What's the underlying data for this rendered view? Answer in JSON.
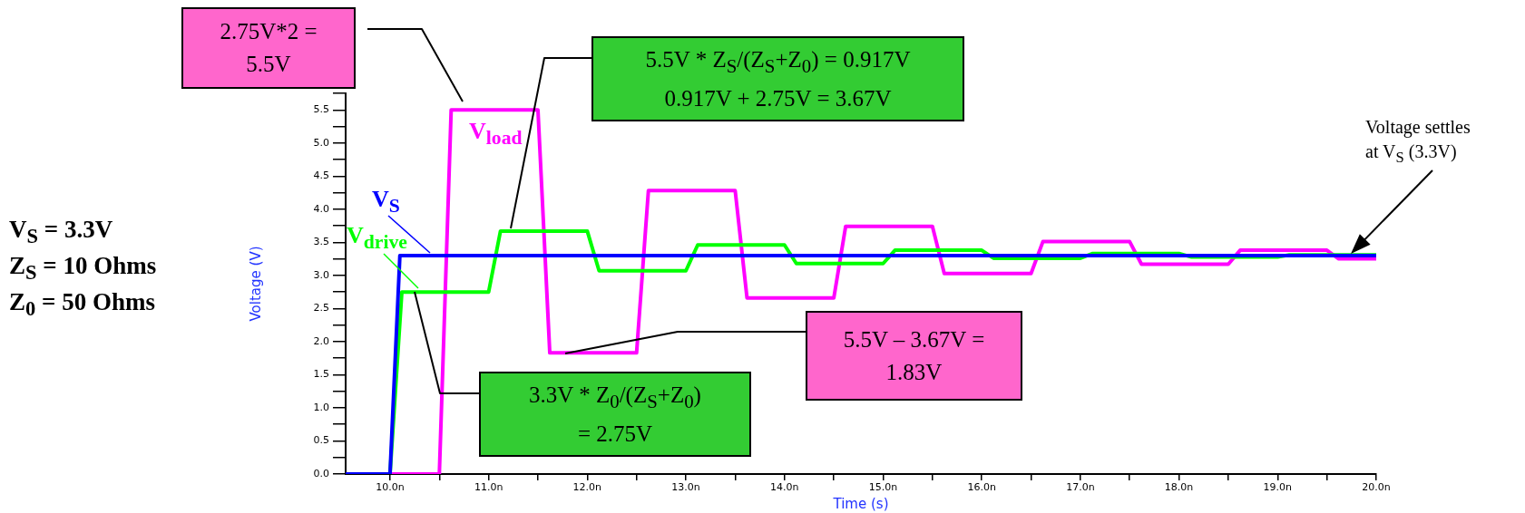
{
  "chart_data": {
    "type": "line",
    "xlabel": "Time (s)",
    "ylabel": "Voltage (V)",
    "xlim": [
      9.55,
      20
    ],
    "xticks": [
      {
        "value": 10,
        "label": "10.0n"
      },
      {
        "value": 10.5,
        "label": null
      },
      {
        "value": 11,
        "label": "11.0n"
      },
      {
        "value": 11.5,
        "label": null
      },
      {
        "value": 12,
        "label": "12.0n"
      },
      {
        "value": 12.5,
        "label": null
      },
      {
        "value": 13,
        "label": "13.0n"
      },
      {
        "value": 13.5,
        "label": null
      },
      {
        "value": 14,
        "label": "14.0n"
      },
      {
        "value": 14.5,
        "label": null
      },
      {
        "value": 15,
        "label": "15.0n"
      },
      {
        "value": 15.5,
        "label": null
      },
      {
        "value": 16,
        "label": "16.0n"
      },
      {
        "value": 16.5,
        "label": null
      },
      {
        "value": 17,
        "label": "17.0n"
      },
      {
        "value": 17.5,
        "label": null
      },
      {
        "value": 18,
        "label": "18.0n"
      },
      {
        "value": 18.5,
        "label": null
      },
      {
        "value": 19,
        "label": "19.0n"
      },
      {
        "value": 19.5,
        "label": null
      },
      {
        "value": 20,
        "label": "20.0n"
      }
    ],
    "ylim": [
      0,
      5.75
    ],
    "yticks": [
      {
        "value": 0,
        "label": "0.0"
      },
      {
        "value": 0.25,
        "label": null
      },
      {
        "value": 0.5,
        "label": "0.5"
      },
      {
        "value": 0.75,
        "label": null
      },
      {
        "value": 1,
        "label": "1.0"
      },
      {
        "value": 1.25,
        "label": null
      },
      {
        "value": 1.5,
        "label": "1.5"
      },
      {
        "value": 1.75,
        "label": null
      },
      {
        "value": 2,
        "label": "2.0"
      },
      {
        "value": 2.25,
        "label": null
      },
      {
        "value": 2.5,
        "label": "2.5"
      },
      {
        "value": 2.75,
        "label": null
      },
      {
        "value": 3,
        "label": "3.0"
      },
      {
        "value": 3.25,
        "label": null
      },
      {
        "value": 3.5,
        "label": "3.5"
      },
      {
        "value": 3.75,
        "label": null
      },
      {
        "value": 4,
        "label": "4.0"
      },
      {
        "value": 4.25,
        "label": null
      },
      {
        "value": 4.5,
        "label": "4.5"
      },
      {
        "value": 4.75,
        "label": null
      },
      {
        "value": 5,
        "label": "5.0"
      },
      {
        "value": 5.25,
        "label": null
      },
      {
        "value": 5.5,
        "label": "5.5"
      },
      {
        "value": 5.75,
        "label": null
      }
    ],
    "marker": "none",
    "line_style": "solid",
    "series": [
      {
        "name": "V$_{S}$",
        "color": "#0000ff",
        "x": [
          9.55,
          10.0,
          10.1,
          20
        ],
        "values": [
          0,
          0,
          3.3,
          3.3
        ]
      },
      {
        "name": "V$_{drive}$",
        "color": "#00ff00",
        "x": [
          9.55,
          10.0,
          10.12,
          11.0,
          11.12,
          12.0,
          12.12,
          13.0,
          13.12,
          14.0,
          14.12,
          15.0,
          15.12,
          16.0,
          16.12,
          17.0,
          17.12,
          18.0,
          18.12,
          19.0,
          19.12,
          20
        ],
        "values": [
          0,
          0,
          2.75,
          2.75,
          3.67,
          3.67,
          3.07,
          3.07,
          3.46,
          3.46,
          3.18,
          3.18,
          3.38,
          3.38,
          3.26,
          3.26,
          3.33,
          3.33,
          3.28,
          3.28,
          3.31,
          3.31
        ]
      },
      {
        "name": "V$_{load}$",
        "color": "#ff00ff",
        "x": [
          9.55,
          10.5,
          10.62,
          11.5,
          11.62,
          12.5,
          12.62,
          13.5,
          13.62,
          14.5,
          14.62,
          15.5,
          15.62,
          16.5,
          16.62,
          17.5,
          17.62,
          18.5,
          18.62,
          19.5,
          19.62,
          20
        ],
        "values": [
          0,
          0,
          5.5,
          5.5,
          1.83,
          1.83,
          4.28,
          4.28,
          2.66,
          2.66,
          3.74,
          3.74,
          3.03,
          3.03,
          3.51,
          3.51,
          3.17,
          3.17,
          3.38,
          3.38,
          3.25,
          3.25
        ]
      }
    ],
    "annotations": [
      "2.75V*2 =\n5.5V",
      "5.5V * Z$_{S}$/(Z$_{S}$+Z$_{0}$) = 0.917V\n0.917V + 2.75V = 3.67V",
      "3.3V * Z$_{0}$/(Z$_{S}$+Z$_{0}$)\n= 2.75V",
      "5.5V – 3.67V =\n1.83V",
      "Voltage settles\nat V$_{S}$ (3.3V)",
      "V$_{S}$ = 3.3V",
      "Z$_{S}$ = 10 Ohms",
      "Z$_{0}$ = 50 Ohms"
    ]
  }
}
